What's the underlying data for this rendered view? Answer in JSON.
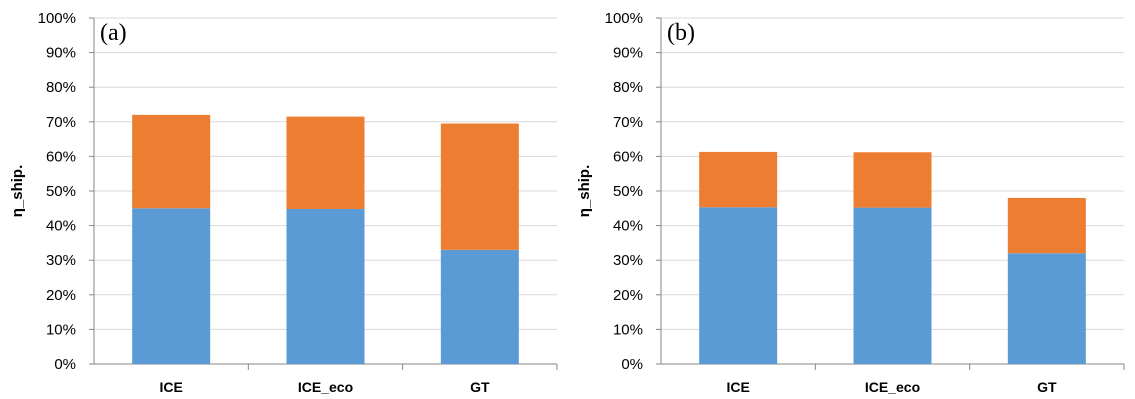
{
  "chart_data": [
    {
      "type": "bar",
      "stacked": true,
      "title": "(a)",
      "xlabel": "",
      "ylabel": "η_ship.",
      "categories": [
        "ICE",
        "ICE_eco",
        "GT"
      ],
      "series": [
        {
          "color": "#5b9bd5",
          "values": [
            45,
            44.8,
            33
          ]
        },
        {
          "color": "#ed7d31",
          "values": [
            27,
            26.7,
            36.5
          ]
        }
      ],
      "ylim": [
        0,
        100
      ],
      "yticks": [
        "0%",
        "10%",
        "20%",
        "30%",
        "40%",
        "50%",
        "60%",
        "70%",
        "80%",
        "90%",
        "100%"
      ],
      "grid": true,
      "legend": "none"
    },
    {
      "type": "bar",
      "stacked": true,
      "title": "(b)",
      "xlabel": "",
      "ylabel": "η_ship.",
      "categories": [
        "ICE",
        "ICE_eco",
        "GT"
      ],
      "series": [
        {
          "color": "#5b9bd5",
          "values": [
            45.3,
            45.2,
            32
          ]
        },
        {
          "color": "#ed7d31",
          "values": [
            16,
            16,
            16
          ]
        }
      ],
      "ylim": [
        0,
        100
      ],
      "yticks": [
        "0%",
        "10%",
        "20%",
        "30%",
        "40%",
        "50%",
        "60%",
        "70%",
        "80%",
        "90%",
        "100%"
      ],
      "grid": true,
      "legend": "none"
    }
  ]
}
